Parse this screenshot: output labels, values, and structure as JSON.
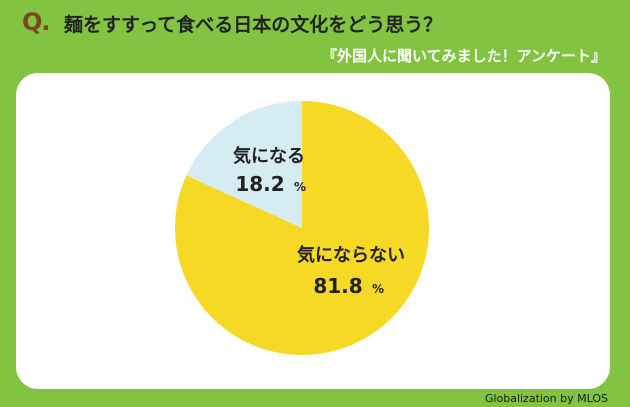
{
  "header": {
    "q_mark": "Q.",
    "question": "麺をすすって食べる日本の文化をどう思う？",
    "subtitle": "『外国人に聞いてみました！アンケート』"
  },
  "footer": {
    "credit": "Globalization by MLOS"
  },
  "colors": {
    "background": "#82c341",
    "panel": "#ffffff",
    "slice_main": "#f5d924",
    "slice_minor": "#d6ecf3"
  },
  "chart_data": {
    "type": "pie",
    "title": "麺をすすって食べる日本の文化をどう思う？",
    "slices": [
      {
        "label": "気にならない",
        "value": 81.8,
        "value_text": "81.8",
        "unit": "%",
        "color": "#f5d924"
      },
      {
        "label": "気になる",
        "value": 18.2,
        "value_text": "18.2",
        "unit": "%",
        "color": "#d6ecf3"
      }
    ],
    "start_angle": "12 o'clock",
    "direction": "clockwise"
  }
}
